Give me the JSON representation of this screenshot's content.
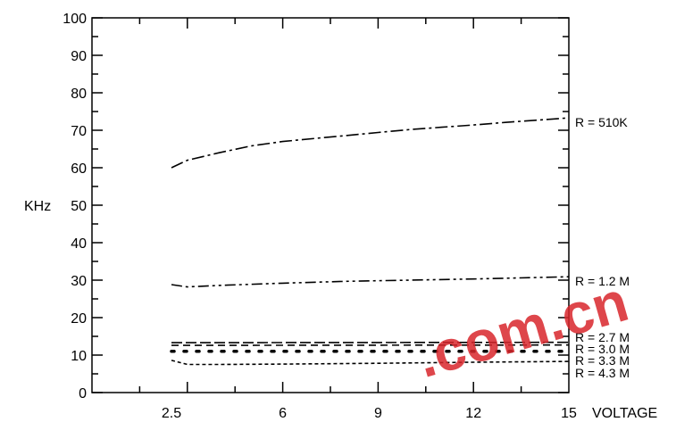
{
  "chart_data": {
    "type": "line",
    "xlabel": "VOLTAGE",
    "ylabel": "KHz",
    "xlim": [
      0,
      15
    ],
    "ylim": [
      0,
      100
    ],
    "x_ticks": [
      2.5,
      6,
      9,
      12,
      15
    ],
    "x_tick_labels": [
      "2.5",
      "6",
      "9",
      "12",
      "15"
    ],
    "y_ticks": [
      0,
      10,
      20,
      30,
      40,
      50,
      60,
      70,
      80,
      90,
      100
    ],
    "y_tick_labels": [
      "0",
      "10",
      "20",
      "30",
      "40",
      "50",
      "60",
      "70",
      "80",
      "90",
      "100"
    ],
    "grid": false,
    "series": [
      {
        "name": "R = 510K",
        "dash": "dashdot",
        "color": "#000000",
        "x": [
          2.5,
          3,
          4,
          5,
          6,
          7,
          8,
          9,
          10,
          11,
          12,
          13,
          14,
          15
        ],
        "y": [
          60,
          62,
          64,
          65.8,
          67,
          67.8,
          68.6,
          69.4,
          70.2,
          70.8,
          71.4,
          72.1,
          72.7,
          73.3
        ]
      },
      {
        "name": "R = 1.2 M",
        "dash": "dashdotdot",
        "color": "#000000",
        "x": [
          2.5,
          3,
          4,
          6,
          8,
          10,
          12,
          15
        ],
        "y": [
          28.8,
          28.2,
          28.6,
          29.2,
          29.7,
          30.0,
          30.3,
          30.9
        ]
      },
      {
        "name": "R = 2.7 M",
        "dash": "longdash",
        "color": "#000000",
        "x": [
          2.5,
          15
        ],
        "y": [
          13.3,
          13.4
        ]
      },
      {
        "name": "R = 3.0 M",
        "dash": "dash",
        "color": "#000000",
        "x": [
          2.5,
          15
        ],
        "y": [
          12.6,
          12.7
        ]
      },
      {
        "name": "R = 3.3 M",
        "dash": "dots",
        "color": "#000000",
        "x": [
          2.5,
          15
        ],
        "y": [
          11.0,
          11.0
        ]
      },
      {
        "name": "R = 4.3 M",
        "dash": "shortdash",
        "color": "#000000",
        "x": [
          2.5,
          3,
          4,
          6,
          9,
          12,
          15
        ],
        "y": [
          8.6,
          7.5,
          7.5,
          7.6,
          7.8,
          8.1,
          8.3
        ]
      }
    ]
  },
  "watermark": {
    "text": ".com.cn",
    "color": "#d9262c"
  }
}
